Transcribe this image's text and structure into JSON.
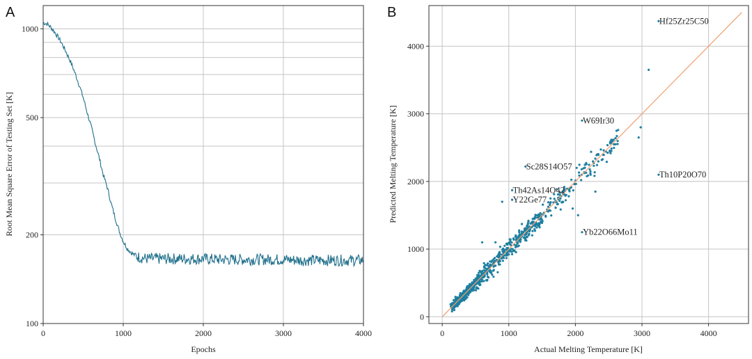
{
  "chart_data": [
    {
      "panel": "A",
      "type": "line",
      "title": "",
      "xlabel": "Epochs",
      "ylabel": "Root Mean Square Error of Testing Set [K]",
      "xlim": [
        0,
        4000
      ],
      "ylim": [
        100,
        1200
      ],
      "yscale": "log",
      "grid": true,
      "x_ticks": [
        0,
        1000,
        2000,
        3000,
        4000
      ],
      "y_ticks": [
        100,
        200,
        500,
        1000
      ],
      "line_color": "#1f6f8b",
      "series": [
        {
          "x": [
            0,
            50,
            100,
            150,
            200,
            250,
            300,
            350,
            400,
            450,
            500,
            550,
            600,
            650,
            700,
            750,
            800,
            850,
            900,
            950,
            1000,
            1050,
            1100,
            1150,
            1200,
            1250,
            1300,
            1350,
            1400,
            1500,
            1600,
            1700,
            1800,
            1900,
            2000,
            2200,
            2400,
            2600,
            2800,
            3000,
            3200,
            3400,
            3600,
            3800,
            4000
          ],
          "values": [
            1050,
            1040,
            1010,
            970,
            925,
            875,
            820,
            765,
            705,
            645,
            585,
            520,
            465,
            410,
            365,
            320,
            290,
            255,
            228,
            206,
            190,
            180,
            174,
            170,
            168,
            167,
            166,
            166,
            166,
            166,
            166,
            166,
            166,
            166,
            166,
            165,
            165,
            165,
            165,
            165,
            164,
            164,
            164,
            164,
            164
          ]
        }
      ]
    },
    {
      "panel": "B",
      "type": "scatter",
      "title": "",
      "xlabel": "Actual Melting Temperature [K]",
      "ylabel": "Predicted Melting Temperature [K]",
      "xlim": [
        -200,
        4600
      ],
      "ylim": [
        -100,
        4600
      ],
      "grid": true,
      "x_ticks": [
        0,
        1000,
        2000,
        3000,
        4000
      ],
      "y_ticks": [
        0,
        1000,
        2000,
        3000,
        4000
      ],
      "point_color": "#1f7fa0",
      "line_color": "#f0a070",
      "identity_line": [
        [
          0,
          0
        ],
        [
          4500,
          4500
        ]
      ],
      "annotations": [
        {
          "label": "Hf25Zr25C50",
          "x": 3250,
          "y": 4370
        },
        {
          "label": "W69Ir30",
          "x": 2100,
          "y": 2900
        },
        {
          "label": "Sc28S14O57",
          "x": 1250,
          "y": 2220
        },
        {
          "label": "Th10P20O70",
          "x": 3250,
          "y": 2100
        },
        {
          "label": "Th42As14O42",
          "x": 1050,
          "y": 1870
        },
        {
          "label": "Y22Ge77",
          "x": 1050,
          "y": 1730
        },
        {
          "label": "Yb22O66Mo11",
          "x": 2100,
          "y": 1250
        }
      ]
    }
  ]
}
